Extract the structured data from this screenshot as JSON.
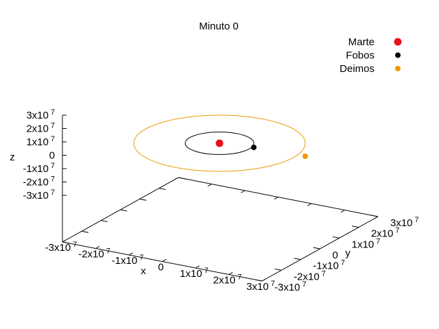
{
  "chart_data": {
    "type": "scatter",
    "title": "Minuto 0",
    "xlabel": "x",
    "ylabel": "y",
    "zlabel": "z",
    "xlim": [
      -30000000,
      30000000
    ],
    "ylim": [
      -30000000,
      30000000
    ],
    "zlim": [
      -30000000,
      30000000
    ],
    "x_ticks": [
      {
        "m": "-3x10",
        "e": "7"
      },
      {
        "m": "-2x10",
        "e": "7"
      },
      {
        "m": "-1x10",
        "e": "7"
      },
      {
        "m": "0",
        "e": ""
      },
      {
        "m": "1x10",
        "e": "7"
      },
      {
        "m": "2x10",
        "e": "7"
      },
      {
        "m": "3x10",
        "e": "7"
      }
    ],
    "y_ticks": [
      {
        "m": "-3x10",
        "e": "7"
      },
      {
        "m": "-2x10",
        "e": "7"
      },
      {
        "m": "-1x10",
        "e": "7"
      },
      {
        "m": "0",
        "e": ""
      },
      {
        "m": "1x10",
        "e": "7"
      },
      {
        "m": "2x10",
        "e": "7"
      },
      {
        "m": "3x10",
        "e": "7"
      }
    ],
    "z_ticks": [
      {
        "m": "3x10",
        "e": "7"
      },
      {
        "m": "2x10",
        "e": "7"
      },
      {
        "m": "1x10",
        "e": "7"
      },
      {
        "m": "0",
        "e": ""
      },
      {
        "m": "-1x10",
        "e": "7"
      },
      {
        "m": "-2x10",
        "e": "7"
      },
      {
        "m": "-3x10",
        "e": "7"
      }
    ],
    "legend_position": "top-right",
    "series": [
      {
        "name": "Marte",
        "color": "#e8131a",
        "points": [
          [
            0,
            0,
            0
          ]
        ]
      },
      {
        "name": "Fobos",
        "color": "#000000",
        "points": [
          [
            9400000,
            0,
            0
          ]
        ]
      },
      {
        "name": "Deimos",
        "color": "#ec9b00",
        "points": [
          [
            23500000,
            0,
            0
          ]
        ]
      }
    ],
    "orbits": [
      {
        "color": "#000000",
        "radius": 9400000
      },
      {
        "color": "#ec9b00",
        "radius": 23500000
      }
    ]
  }
}
